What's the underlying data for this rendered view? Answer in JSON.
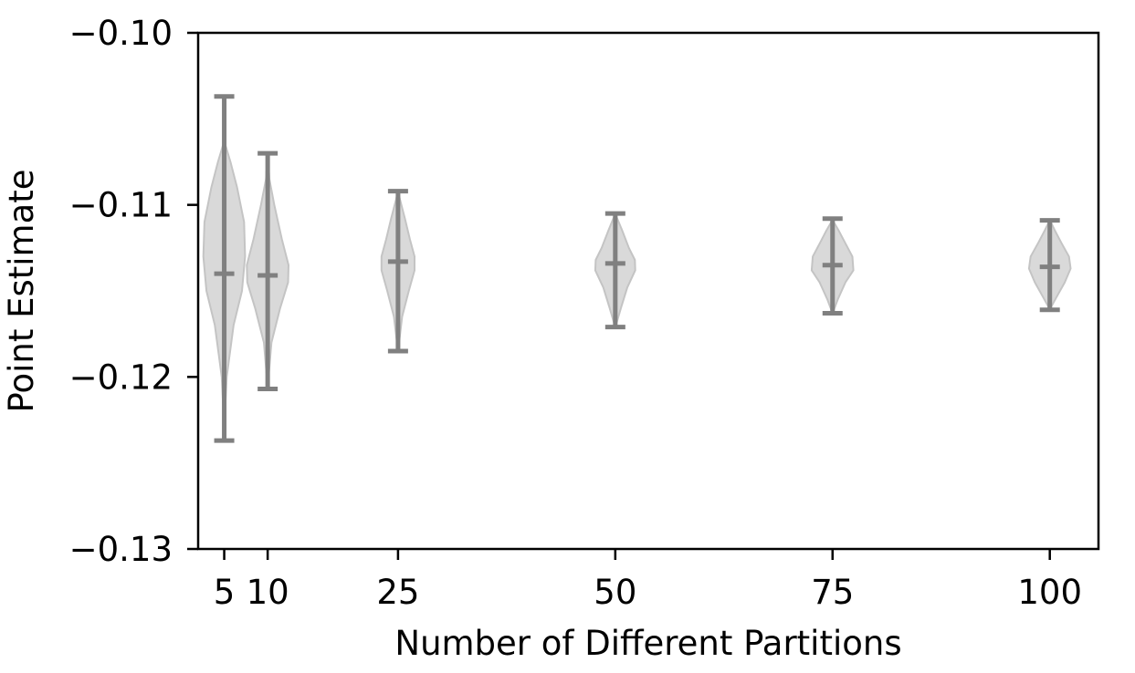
{
  "chart_data": {
    "type": "violin",
    "xlabel": "Number of Different Partitions",
    "ylabel": "Point Estimate",
    "ylim": [
      -0.13,
      -0.1
    ],
    "y_ticks": [
      -0.1,
      -0.11,
      -0.12,
      -0.13
    ],
    "y_tick_labels": [
      "−0.10",
      "−0.11",
      "−0.12",
      "−0.13"
    ],
    "x_ticks": [
      5,
      10,
      25,
      50,
      75,
      100
    ],
    "x_tick_labels": [
      "5",
      "10",
      "25",
      "50",
      "75",
      "100"
    ],
    "grid": false,
    "colors": {
      "violin_fill": "#d9d9d9",
      "violin_edge": "#c4c4c4",
      "stat_lines": "#808080"
    },
    "violins": [
      {
        "x": 5,
        "min": -0.1237,
        "median": -0.114,
        "max": -0.1037,
        "half_width": 2.4,
        "shape": [
          [
            -0.1225,
            0.02
          ],
          [
            -0.12,
            0.12
          ],
          [
            -0.117,
            0.45
          ],
          [
            -0.115,
            0.85
          ],
          [
            -0.113,
            1.0
          ],
          [
            -0.111,
            0.95
          ],
          [
            -0.109,
            0.62
          ],
          [
            -0.1075,
            0.3
          ],
          [
            -0.1065,
            0.05
          ]
        ]
      },
      {
        "x": 10,
        "min": -0.1207,
        "median": -0.1141,
        "max": -0.107,
        "half_width": 2.4,
        "shape": [
          [
            -0.1202,
            0.03
          ],
          [
            -0.118,
            0.18
          ],
          [
            -0.116,
            0.6
          ],
          [
            -0.1145,
            0.98
          ],
          [
            -0.1135,
            1.0
          ],
          [
            -0.112,
            0.68
          ],
          [
            -0.11,
            0.32
          ],
          [
            -0.1085,
            0.08
          ],
          [
            -0.1073,
            0.02
          ]
        ]
      },
      {
        "x": 25,
        "min": -0.1185,
        "median": -0.1133,
        "max": -0.1092,
        "half_width": 1.9,
        "shape": [
          [
            -0.1183,
            0.03
          ],
          [
            -0.1165,
            0.25
          ],
          [
            -0.115,
            0.65
          ],
          [
            -0.1138,
            1.0
          ],
          [
            -0.113,
            1.0
          ],
          [
            -0.112,
            0.72
          ],
          [
            -0.1108,
            0.42
          ],
          [
            -0.1097,
            0.12
          ],
          [
            -0.1093,
            0.03
          ]
        ]
      },
      {
        "x": 50,
        "min": -0.1171,
        "median": -0.1134,
        "max": -0.1105,
        "half_width": 2.3,
        "shape": [
          [
            -0.117,
            0.03
          ],
          [
            -0.116,
            0.28
          ],
          [
            -0.1148,
            0.6
          ],
          [
            -0.1138,
            1.0
          ],
          [
            -0.1132,
            0.98
          ],
          [
            -0.1125,
            0.68
          ],
          [
            -0.1115,
            0.35
          ],
          [
            -0.1108,
            0.1
          ],
          [
            -0.1106,
            0.03
          ]
        ]
      },
      {
        "x": 75,
        "min": -0.1163,
        "median": -0.1135,
        "max": -0.1108,
        "half_width": 2.4,
        "shape": [
          [
            -0.1162,
            0.03
          ],
          [
            -0.1155,
            0.25
          ],
          [
            -0.1145,
            0.62
          ],
          [
            -0.1138,
            1.0
          ],
          [
            -0.113,
            0.95
          ],
          [
            -0.1122,
            0.6
          ],
          [
            -0.1115,
            0.3
          ],
          [
            -0.111,
            0.06
          ]
        ]
      },
      {
        "x": 100,
        "min": -0.1161,
        "median": -0.1136,
        "max": -0.1109,
        "half_width": 2.4,
        "shape": [
          [
            -0.116,
            0.03
          ],
          [
            -0.1153,
            0.35
          ],
          [
            -0.1145,
            0.72
          ],
          [
            -0.1137,
            1.0
          ],
          [
            -0.113,
            0.92
          ],
          [
            -0.1122,
            0.55
          ],
          [
            -0.1115,
            0.25
          ],
          [
            -0.111,
            0.05
          ]
        ]
      }
    ]
  }
}
